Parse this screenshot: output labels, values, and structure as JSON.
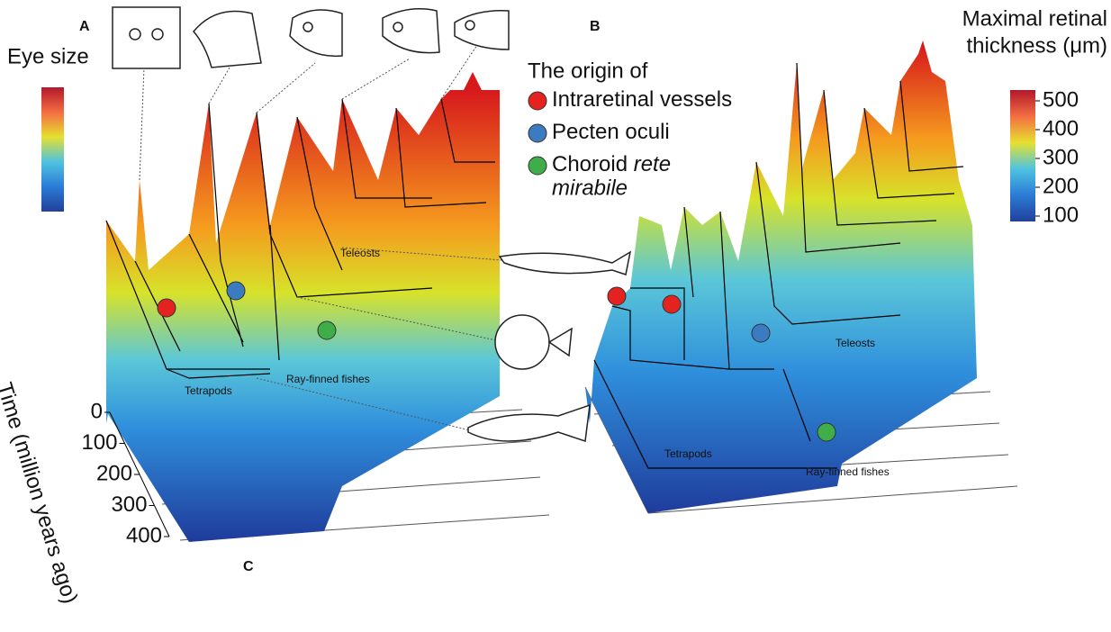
{
  "panel_labels": [
    "A",
    "B",
    "C"
  ],
  "eye_size_colorbar": {
    "title": "Eye size"
  },
  "thickness_colorbar": {
    "title": [
      "Maximal retinal",
      "thickness (μm)"
    ],
    "ticks": [
      100,
      200,
      300,
      400,
      500
    ]
  },
  "time_axis": {
    "title": "Time (million years ago)",
    "ticks": [
      0,
      100,
      200,
      300,
      400
    ]
  },
  "legend": {
    "title": "The origin of",
    "items": [
      {
        "label": "Intraretinal vessels",
        "color": "#e42320"
      },
      {
        "label": "Pecten oculi",
        "color": "#3b7bbf"
      },
      {
        "label": "Choroid",
        "label_italic": [
          "rete",
          "mirabile"
        ],
        "color": "#3fae49"
      }
    ]
  },
  "clade_labels_a": [
    "Tetrapods",
    "Ray-finned fishes",
    "Teleosts"
  ],
  "clade_labels_b": [
    "Tetrapods",
    "Ray-finned fishes",
    "Teleosts"
  ]
}
